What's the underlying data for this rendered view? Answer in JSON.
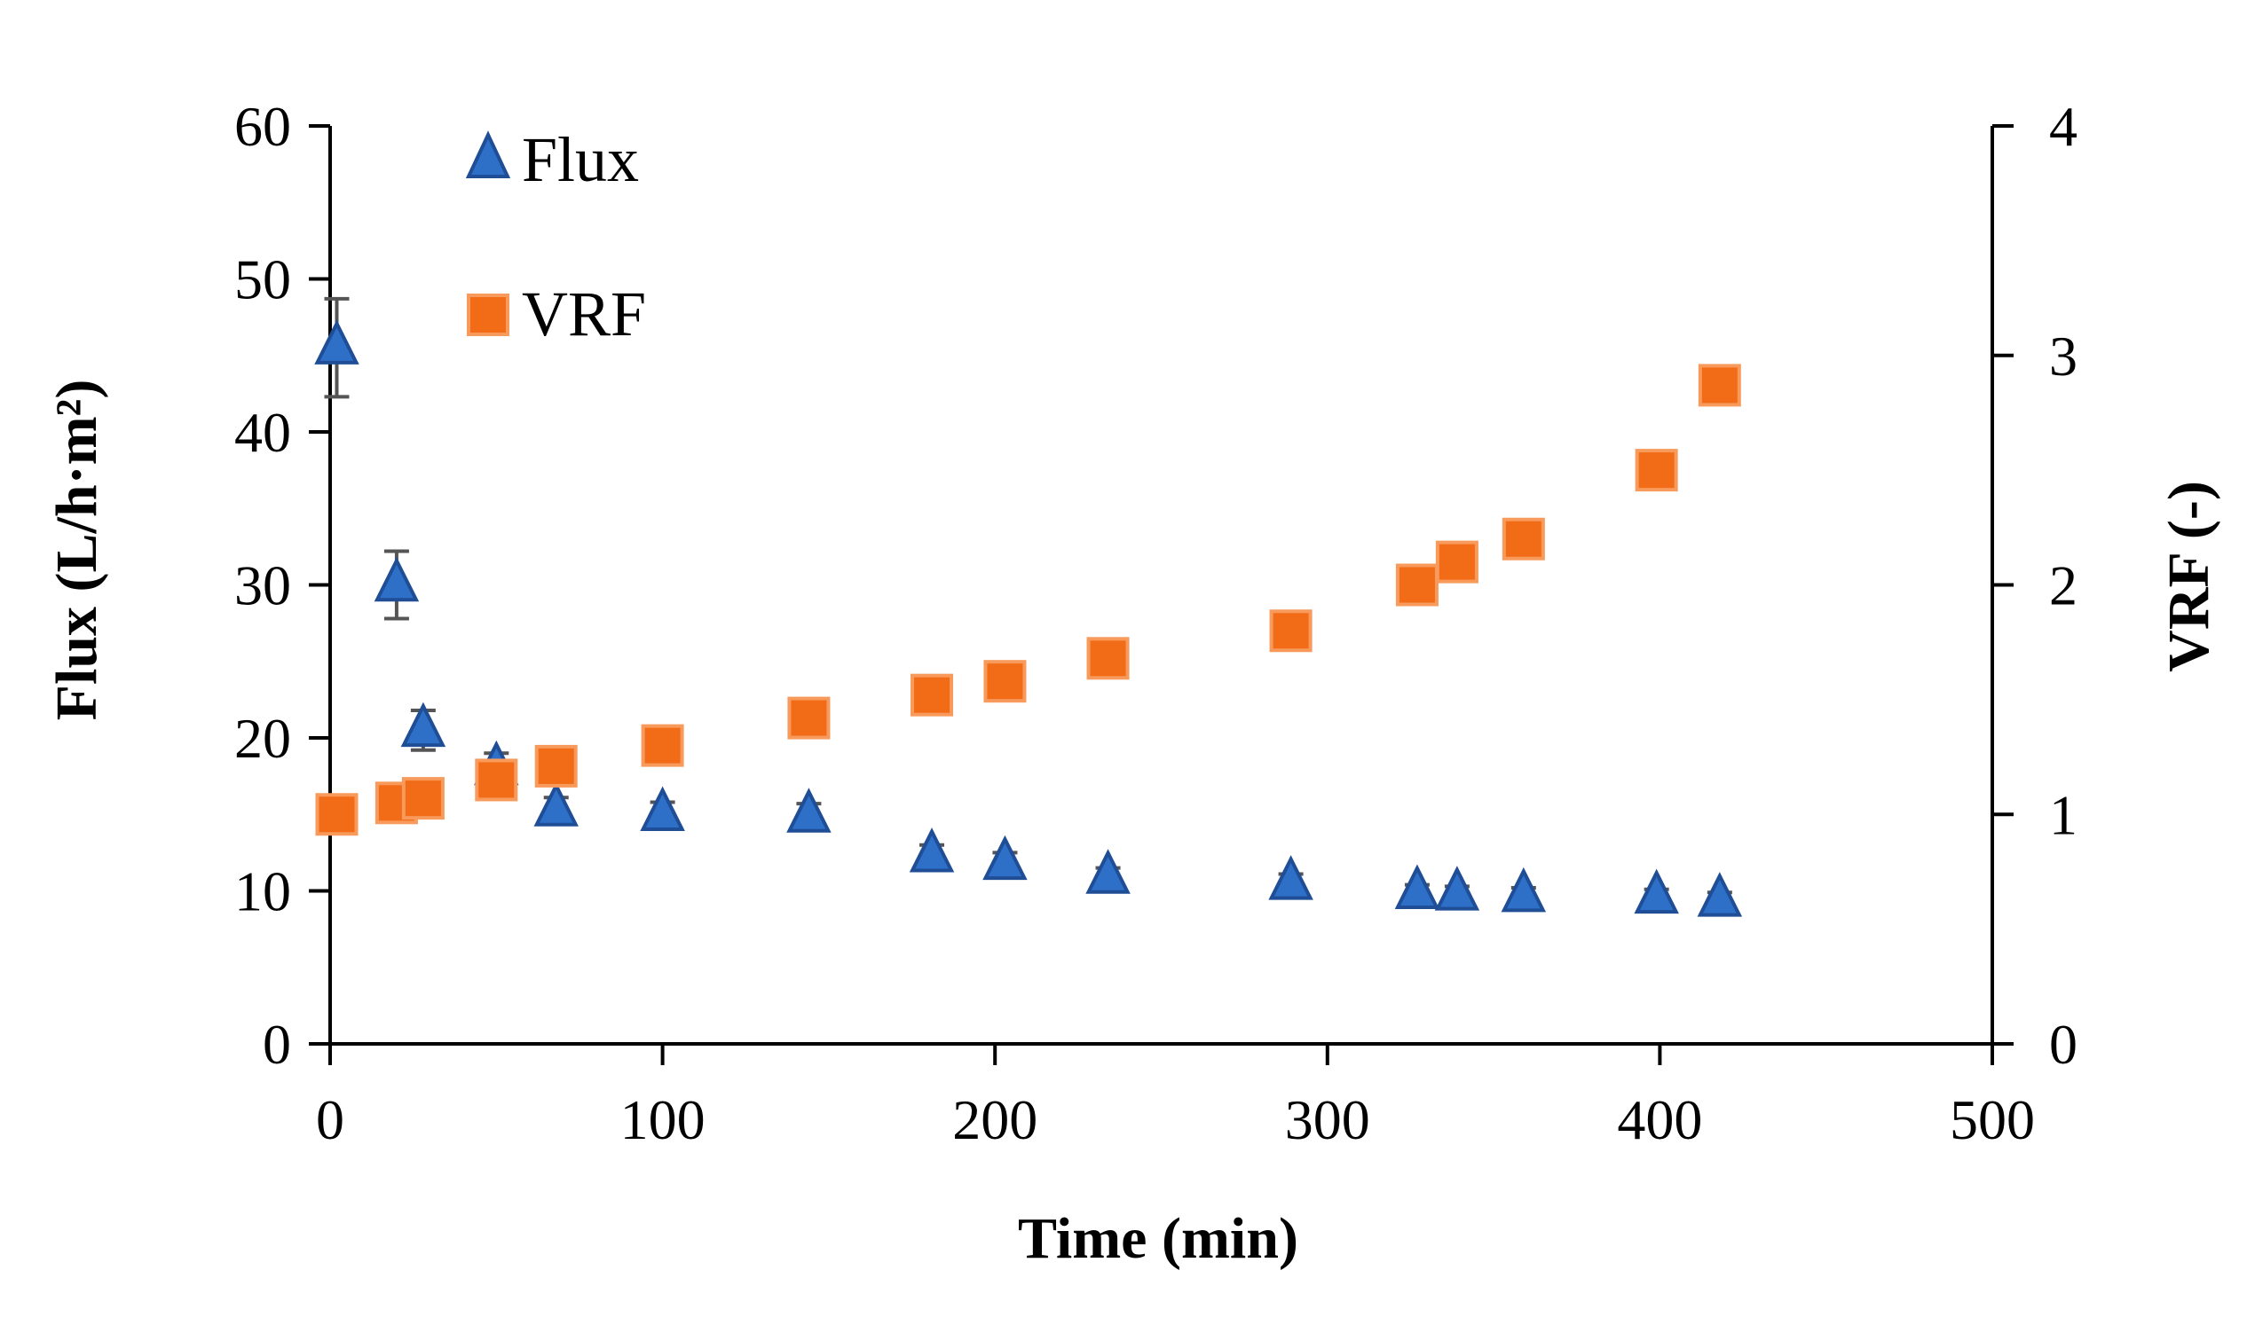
{
  "chart_data": {
    "type": "scatter",
    "xlabel": "Time (min)",
    "ylabel": "Flux (L/h·m²)",
    "y2label": "VRF (-)",
    "xlim": [
      0,
      500
    ],
    "ylim": [
      0,
      60
    ],
    "y2lim": [
      0,
      4
    ],
    "x_ticks": [
      "0",
      "100",
      "200",
      "300",
      "400",
      "500"
    ],
    "y_ticks": [
      "0",
      "10",
      "20",
      "30",
      "40",
      "50",
      "60"
    ],
    "y2_ticks": [
      "0",
      "1",
      "2",
      "3",
      "4"
    ],
    "grid": false,
    "legend_position": "top-left",
    "series": [
      {
        "name": "Flux",
        "axis": "left",
        "marker": "triangle",
        "color": "#2E6FC8",
        "edge_color": "#1F4E96",
        "points": [
          {
            "x": 2,
            "y": 45.5,
            "err": 3.2
          },
          {
            "x": 20,
            "y": 30.0,
            "err": 2.2
          },
          {
            "x": 28,
            "y": 20.5,
            "err": 1.3
          },
          {
            "x": 50,
            "y": 18.0,
            "err": 1.0
          },
          {
            "x": 68,
            "y": 15.3,
            "err": 0.8
          },
          {
            "x": 100,
            "y": 15.0,
            "err": 0.8
          },
          {
            "x": 144,
            "y": 14.9,
            "err": 0.8
          },
          {
            "x": 181,
            "y": 12.3,
            "err": 0.7
          },
          {
            "x": 203,
            "y": 11.8,
            "err": 0.7
          },
          {
            "x": 234,
            "y": 10.9,
            "err": 0.6
          },
          {
            "x": 289,
            "y": 10.5,
            "err": 0.6
          },
          {
            "x": 327,
            "y": 9.9,
            "err": 0.5
          },
          {
            "x": 339,
            "y": 9.8,
            "err": 0.5
          },
          {
            "x": 359,
            "y": 9.7,
            "err": 0.5
          },
          {
            "x": 399,
            "y": 9.6,
            "err": 0.5
          },
          {
            "x": 418,
            "y": 9.4,
            "err": 0.5
          }
        ]
      },
      {
        "name": "VRF",
        "axis": "right",
        "marker": "square",
        "color": "#F26B16",
        "edge_color": "#F79A5C",
        "points": [
          {
            "x": 2,
            "y": 1.0
          },
          {
            "x": 20,
            "y": 1.05
          },
          {
            "x": 28,
            "y": 1.07
          },
          {
            "x": 50,
            "y": 1.15
          },
          {
            "x": 68,
            "y": 1.21
          },
          {
            "x": 100,
            "y": 1.3
          },
          {
            "x": 144,
            "y": 1.42
          },
          {
            "x": 181,
            "y": 1.52
          },
          {
            "x": 203,
            "y": 1.58
          },
          {
            "x": 234,
            "y": 1.68
          },
          {
            "x": 289,
            "y": 1.8
          },
          {
            "x": 327,
            "y": 2.0
          },
          {
            "x": 339,
            "y": 2.1
          },
          {
            "x": 359,
            "y": 2.2
          },
          {
            "x": 399,
            "y": 2.5
          },
          {
            "x": 418,
            "y": 2.87
          }
        ]
      }
    ]
  }
}
